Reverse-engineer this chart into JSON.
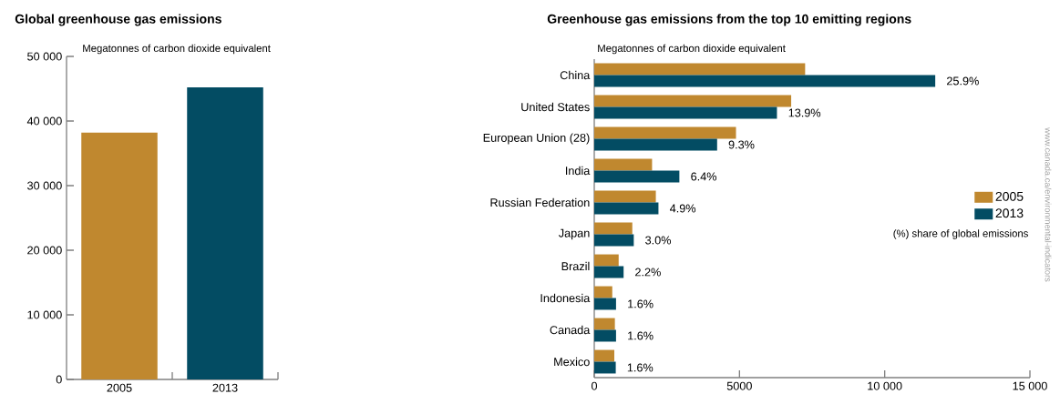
{
  "chart_data": [
    {
      "type": "bar",
      "title": "Global greenhouse gas emissions",
      "ylabel": "Megatonnes of carbon dioxide equivalent",
      "categories": [
        "2005",
        "2013"
      ],
      "values": [
        38200,
        45200
      ],
      "colors": [
        "#c0882f",
        "#034c63"
      ],
      "ylim": [
        0,
        50000
      ],
      "yticks": [
        0,
        {
          "value": 10000,
          "label": "10 000"
        },
        {
          "value": 20000,
          "label": "20 000"
        },
        {
          "value": 30000,
          "label": "30 000"
        },
        {
          "value": 40000,
          "label": "40 000"
        },
        {
          "value": 50000,
          "label": "50 000"
        }
      ]
    },
    {
      "type": "bar",
      "orientation": "horizontal",
      "title": "Greenhouse gas emissions from the top 10 emitting regions",
      "xlabel": "Megatonnes of carbon dioxide equivalent",
      "categories": [
        "China",
        "United States",
        "European Union (28)",
        "India",
        "Russian Federation",
        "Japan",
        "Brazil",
        "Indonesia",
        "Canada",
        "Mexico"
      ],
      "series": [
        {
          "name": "2005",
          "color": "#c0882f",
          "values": [
            7260,
            6780,
            4880,
            1990,
            2120,
            1310,
            840,
            620,
            710,
            690
          ]
        },
        {
          "name": "2013",
          "color": "#034c63",
          "values": [
            11740,
            6290,
            4230,
            2930,
            2210,
            1360,
            1010,
            750,
            750,
            740
          ]
        }
      ],
      "xlim": [
        0,
        15000
      ],
      "xticks": [
        0,
        5000,
        {
          "value": 10000,
          "label": "10 000"
        },
        {
          "value": 15000,
          "label": "15 000"
        }
      ],
      "legend": "right",
      "annotations": [
        "(%) share of global emissions",
        "www.canada.ca/environmental-indicators",
        {
          "text": "25.9%",
          "x": 11740,
          "y": "China"
        },
        {
          "text": "13.9%",
          "x": 6290,
          "y": "United States"
        },
        {
          "text": "9.3%",
          "x": 4230,
          "y": "European Union (28)"
        },
        {
          "text": "6.4%",
          "x": 2930,
          "y": "India"
        },
        {
          "text": "4.9%",
          "x": 2210,
          "y": "Russian Federation"
        },
        {
          "text": "3.0%",
          "x": 1360,
          "y": "Japan"
        },
        {
          "text": "2.2%",
          "x": 1010,
          "y": "Brazil"
        },
        {
          "text": "1.6%",
          "x": 750,
          "y": "Indonesia"
        },
        {
          "text": "1.6%",
          "x": 750,
          "y": "Canada"
        },
        {
          "text": "1.6%",
          "x": 740,
          "y": "Mexico"
        }
      ]
    }
  ]
}
